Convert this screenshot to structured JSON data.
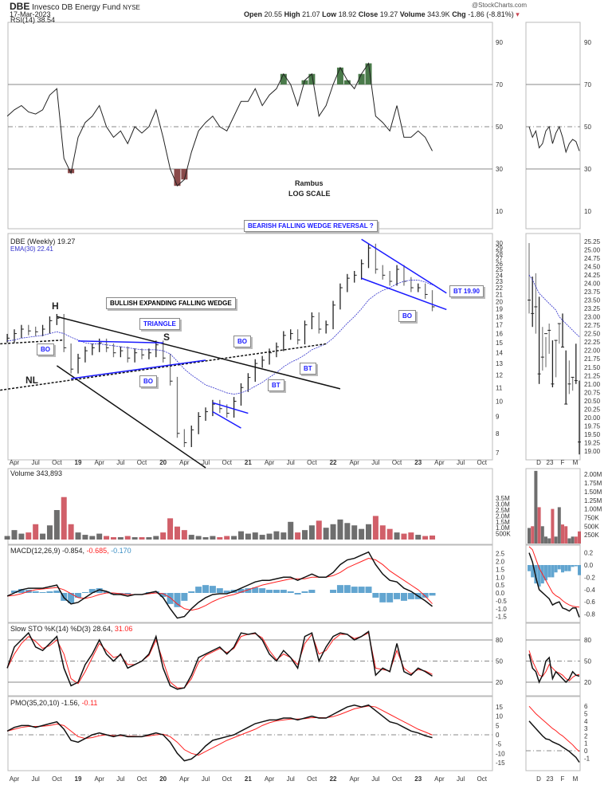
{
  "header": {
    "symbol": "DBE",
    "name": "Invesco DB Energy Fund",
    "exchange": "NYSE",
    "date": "17-Mar-2023",
    "brand": "@StockCharts.com",
    "quote": {
      "open_label": "Open",
      "open": "20.55",
      "high_label": "High",
      "high": "21.07",
      "low_label": "Low",
      "low": "18.92",
      "close_label": "Close",
      "close": "19.27",
      "volume_label": "Volume",
      "volume": "343.9K",
      "chg_label": "Chg",
      "chg": "-1.86 (-8.81%)"
    }
  },
  "legends": {
    "rsi": "RSI(14) 38.54",
    "price": "DBE (Weekly) 19.27",
    "ema": "EMA(30) 22.41",
    "volume": "Volume 343,893",
    "macd": "MACD(12,26,9) -0.854,",
    "macd_signal": "-0.685,",
    "macd_hist": "-0.170",
    "sto": "Slow STO %K(14) %D(3) 28.64,",
    "sto_d": "31.06",
    "pmo": "PMO(35,20,10) -1.56,",
    "pmo_signal": "-0.11"
  },
  "annotations": {
    "rambus": "Rambus",
    "log_scale": "LOG SCALE",
    "bearish_wedge": "BEARISH FALLING WEDGE REVERSAL ?",
    "bullish_wedge": "BULLISH EXPANDING FALLING WEDGE",
    "triangle": "TRIANGLE",
    "bt_price": "BT 19.90",
    "bo": "BO",
    "bt": "BT",
    "h": "H",
    "s": "S",
    "nl": "NL"
  },
  "colors": {
    "up": "#555555",
    "down": "#c9434f",
    "ema": "#3333cc",
    "trend_blue": "#1a1aff",
    "macd_hist": "#3b8fc4",
    "signal": "#ff2020",
    "rsi_over": "#4a7a4a",
    "rsi_under": "#8a4a4a"
  },
  "chart_data": {
    "type": "line",
    "scale": "log",
    "start_month": "2018-03",
    "frequency": "monthly",
    "x_ticks": [
      "Apr",
      "Jul",
      "Oct",
      "19",
      "Apr",
      "Jul",
      "Oct",
      "20",
      "Apr",
      "Jul",
      "Oct",
      "21",
      "Apr",
      "Jul",
      "Oct",
      "22",
      "Apr",
      "Jul",
      "Oct",
      "23",
      "Apr",
      "Jul",
      "Oct"
    ],
    "price_ticks": [
      30,
      29,
      28,
      27,
      26,
      25,
      24,
      23,
      22,
      21,
      20,
      19,
      18,
      17,
      16,
      15,
      14,
      13,
      12,
      11,
      10,
      9,
      8,
      7
    ],
    "rsi_ticks": [
      90,
      70,
      50,
      30,
      10
    ],
    "volume_ticks": [
      "3.5M",
      "3.0M",
      "2.5M",
      "2.0M",
      "1.5M",
      "1.0M",
      "500K"
    ],
    "macd_ticks": [
      2.5,
      2.0,
      1.5,
      1.0,
      0.5,
      0.0,
      -0.5,
      -1.0,
      -1.5
    ],
    "sto_ticks": [
      80,
      50,
      20
    ],
    "pmo_ticks": [
      15,
      10,
      5,
      0,
      -5,
      -10,
      -15
    ],
    "close": [
      15.5,
      16,
      16.5,
      16.3,
      16.2,
      16.5,
      17.5,
      17.8,
      14.5,
      12.5,
      13.5,
      14.2,
      14.5,
      15,
      14.5,
      14,
      14.2,
      13.5,
      14,
      13.8,
      14,
      14.8,
      13.5,
      11.5,
      8,
      7.5,
      8.2,
      9,
      9.3,
      9.8,
      9.5,
      9.2,
      10,
      11,
      11.8,
      13,
      13.3,
      14,
      14.6,
      15.8,
      16,
      15.3,
      17,
      18,
      16.5,
      17,
      19.5,
      22,
      23.5,
      24,
      26,
      29,
      25,
      24,
      23,
      25,
      23,
      22,
      22,
      21,
      19.27
    ],
    "ema30": [
      15.2,
      15.3,
      15.5,
      15.6,
      15.7,
      15.8,
      16,
      16.2,
      16,
      15.6,
      15.3,
      15,
      14.9,
      14.9,
      14.8,
      14.7,
      14.6,
      14.5,
      14.4,
      14.3,
      14.3,
      14.3,
      14.2,
      13.9,
      13.2,
      12.5,
      12,
      11.6,
      11.2,
      11,
      10.8,
      10.6,
      10.5,
      10.6,
      10.8,
      11.1,
      11.4,
      11.8,
      12.2,
      12.7,
      13.1,
      13.4,
      13.8,
      14.3,
      14.6,
      14.9,
      15.5,
      16.3,
      17.2,
      18,
      19,
      20.2,
      21,
      21.6,
      22,
      22.6,
      23,
      23.2,
      23.2,
      22.9,
      22.41
    ],
    "rsi": [
      55,
      58,
      60,
      57,
      56,
      58,
      65,
      68,
      35,
      28,
      45,
      52,
      55,
      60,
      50,
      45,
      48,
      42,
      50,
      47,
      50,
      58,
      45,
      30,
      22,
      25,
      38,
      48,
      52,
      55,
      50,
      48,
      55,
      62,
      62,
      68,
      60,
      65,
      68,
      75,
      70,
      60,
      72,
      75,
      55,
      60,
      70,
      78,
      72,
      68,
      75,
      80,
      55,
      52,
      48,
      60,
      45,
      45,
      48,
      45,
      38.54
    ],
    "volume_m": [
      0.3,
      0.8,
      0.5,
      0.6,
      1.3,
      0.5,
      1.2,
      2.5,
      3.6,
      1.3,
      0.6,
      0.4,
      0.3,
      0.5,
      0.3,
      0.2,
      0.2,
      0.3,
      0.2,
      0.2,
      0.2,
      0.3,
      0.6,
      1.8,
      1.1,
      0.8,
      0.4,
      0.3,
      0.2,
      0.3,
      0.2,
      0.3,
      0.3,
      0.7,
      0.5,
      0.6,
      0.4,
      0.5,
      0.7,
      0.6,
      1.5,
      0.6,
      0.8,
      1.2,
      1.6,
      1.0,
      1.3,
      1.7,
      1.4,
      1.2,
      0.9,
      1.3,
      2.0,
      1.2,
      0.9,
      0.6,
      0.5,
      0.6,
      0.4,
      0.3,
      0.34
    ],
    "macd": [
      -0.2,
      0,
      0.2,
      0.3,
      0.3,
      0.3,
      0.4,
      0.5,
      -0.3,
      -0.7,
      -0.6,
      -0.3,
      0,
      0.2,
      0.1,
      -0.1,
      -0.1,
      -0.2,
      -0.1,
      -0.1,
      0,
      0.1,
      -0.3,
      -1,
      -1.6,
      -1.5,
      -1.0,
      -0.6,
      -0.3,
      -0.1,
      -0.05,
      -0.05,
      0.1,
      0.3,
      0.5,
      0.7,
      0.8,
      0.8,
      0.9,
      1.0,
      1.0,
      0.8,
      1.0,
      1.2,
      1.0,
      1.0,
      1.3,
      1.8,
      2.1,
      2.2,
      2.4,
      2.6,
      1.8,
      1.2,
      0.8,
      0.7,
      0.3,
      0.1,
      -0.2,
      -0.5,
      -0.854
    ],
    "macd_signal": [
      -0.2,
      -0.15,
      -0.05,
      0.1,
      0.2,
      0.25,
      0.3,
      0.35,
      0.2,
      -0.05,
      -0.3,
      -0.35,
      -0.25,
      -0.1,
      0,
      0,
      -0.05,
      -0.1,
      -0.1,
      -0.1,
      -0.05,
      0,
      -0.05,
      -0.3,
      -0.7,
      -1.0,
      -1.1,
      -1.0,
      -0.8,
      -0.55,
      -0.35,
      -0.2,
      -0.1,
      0.05,
      0.2,
      0.35,
      0.5,
      0.6,
      0.7,
      0.8,
      0.9,
      0.9,
      0.9,
      1.0,
      1.0,
      1.0,
      1.1,
      1.3,
      1.6,
      1.8,
      2.0,
      2.2,
      2.1,
      1.8,
      1.4,
      1.1,
      0.8,
      0.5,
      0.2,
      -0.2,
      -0.685
    ],
    "sto_k": [
      40,
      70,
      80,
      90,
      70,
      65,
      75,
      85,
      40,
      15,
      20,
      45,
      60,
      80,
      60,
      50,
      60,
      40,
      45,
      50,
      60,
      85,
      40,
      15,
      10,
      12,
      30,
      55,
      60,
      65,
      70,
      60,
      70,
      90,
      88,
      90,
      80,
      60,
      50,
      65,
      55,
      40,
      85,
      90,
      50,
      70,
      85,
      90,
      88,
      80,
      85,
      92,
      30,
      40,
      35,
      75,
      35,
      30,
      40,
      35,
      28.64
    ],
    "sto_d": [
      40,
      60,
      75,
      85,
      78,
      68,
      72,
      80,
      60,
      25,
      18,
      35,
      55,
      75,
      65,
      55,
      58,
      45,
      45,
      50,
      58,
      80,
      50,
      20,
      12,
      12,
      25,
      48,
      58,
      63,
      68,
      62,
      68,
      85,
      88,
      89,
      83,
      65,
      52,
      60,
      55,
      45,
      75,
      88,
      60,
      65,
      80,
      88,
      88,
      82,
      85,
      90,
      40,
      38,
      36,
      65,
      40,
      32,
      38,
      36,
      31.06
    ],
    "pmo": [
      2,
      4,
      5,
      5,
      4,
      5,
      6,
      7,
      3,
      -3,
      -4,
      -2,
      0,
      1,
      0,
      -1,
      0,
      -1,
      -1,
      -1,
      0,
      1,
      0,
      -4,
      -10,
      -14,
      -13,
      -10,
      -6,
      -3,
      -2,
      -1,
      0,
      2,
      4,
      6,
      7,
      8,
      8,
      9,
      9,
      8,
      9,
      10,
      9,
      9,
      11,
      13,
      15,
      16,
      15,
      16,
      13,
      10,
      7,
      6,
      4,
      2,
      1,
      -0.5,
      -1.56
    ],
    "pmo_signal": [
      2,
      3,
      4,
      4.5,
      4.5,
      4.6,
      5,
      5.8,
      5,
      2,
      -1,
      -2,
      -1.5,
      -0.5,
      0,
      -0.5,
      -0.5,
      -0.7,
      -0.8,
      -0.9,
      -0.6,
      0,
      0.3,
      -1,
      -4,
      -8,
      -10,
      -11,
      -9,
      -7,
      -5,
      -3,
      -1.5,
      0,
      1.5,
      3,
      5,
      6.5,
      7.5,
      8,
      8.5,
      8.5,
      8.7,
      9.2,
      9.3,
      9.2,
      9.8,
      11,
      12.5,
      14,
      14.8,
      15.5,
      15,
      13,
      11,
      9,
      7,
      5,
      3,
      1.5,
      -0.11
    ],
    "trendlines": [
      {
        "from": [
          "2018-10",
          18.0
        ],
        "to": [
          "2022-02",
          10.9
        ],
        "color": "black"
      },
      {
        "from": [
          "2018-10",
          12.8
        ],
        "to": [
          "2020-07",
          6.3
        ],
        "color": "black"
      },
      {
        "from": [
          "2018-02",
          10.8
        ],
        "to": [
          "2021-12",
          14.9
        ],
        "color": "black",
        "dashed": true
      },
      {
        "from": [
          "2018-02",
          14.9
        ],
        "to": [
          "2018-11",
          15.3
        ],
        "color": "black",
        "dashed": true
      },
      {
        "from": [
          "2019-01",
          15.2
        ],
        "to": [
          "2020-01",
          15.0
        ],
        "color": "blue"
      },
      {
        "from": [
          "2018-12",
          11.7
        ],
        "to": [
          "2020-07",
          13.3
        ],
        "color": "blue"
      },
      {
        "from": [
          "2020-08",
          9.9
        ],
        "to": [
          "2021-01",
          9.2
        ],
        "color": "blue"
      },
      {
        "from": [
          "2020-08",
          9.3
        ],
        "to": [
          "2020-12",
          8.3
        ],
        "color": "blue"
      },
      {
        "from": [
          "2022-05",
          30.8
        ],
        "to": [
          "2023-05",
          21.2
        ],
        "color": "blue"
      },
      {
        "from": [
          "2022-05",
          23.5
        ],
        "to": [
          "2023-05",
          18.9
        ],
        "color": "blue"
      }
    ],
    "inset": {
      "x_ticks": [
        "D",
        "23",
        "F",
        "M"
      ],
      "frequency": "weekly",
      "price_ticks": [
        25.25,
        25.0,
        24.75,
        24.5,
        24.25,
        24.0,
        23.75,
        23.5,
        23.25,
        23.0,
        22.75,
        22.5,
        22.25,
        22.0,
        21.75,
        21.5,
        21.25,
        21.0,
        20.75,
        20.5,
        20.25,
        20.0,
        19.75,
        19.5,
        19.25,
        19.0
      ],
      "volume_ticks": [
        "2.00M",
        "1.75M",
        "1.50M",
        "1.25M",
        "1.00M",
        "750K",
        "500K",
        "250K"
      ],
      "macd_ticks": [
        0.2,
        0.0,
        -0.2,
        -0.4,
        -0.6,
        -0.8
      ],
      "pmo_ticks": [
        6,
        5,
        4,
        3,
        2,
        1,
        0,
        -1
      ],
      "close": [
        23.5,
        23.1,
        23.3,
        21.3,
        21.8,
        22.5,
        22.6,
        21.0,
        22.3,
        22.8,
        22.1,
        20.4,
        21.0,
        21.2,
        21.1,
        19.27
      ],
      "high": [
        25.2,
        24.2,
        24.3,
        23.6,
        22.7,
        22.4,
        22.8,
        22.3,
        22.3,
        22.8,
        23.1,
        22.0,
        21.7,
        21.2,
        22.2,
        21.1
      ],
      "low": [
        23.1,
        22.7,
        22.5,
        21.0,
        21.4,
        21.5,
        21.9,
        20.9,
        21.2,
        22.2,
        22.1,
        20.4,
        20.7,
        20.8,
        21.0,
        18.9
      ],
      "ema30": [
        24.25,
        24.1,
        23.9,
        23.7,
        23.6,
        23.5,
        23.4,
        23.3,
        23.2,
        23.0,
        22.9,
        22.8,
        22.7,
        22.6,
        22.5,
        22.41
      ],
      "rsi": [
        50,
        45,
        48,
        40,
        42,
        48,
        50,
        42,
        47,
        50,
        45,
        38,
        42,
        44,
        43,
        38.54
      ],
      "volume_m": [
        0.45,
        0.5,
        2.1,
        1.05,
        0.5,
        0.2,
        0.15,
        1.0,
        0.2,
        1.05,
        0.55,
        0.5,
        0.15,
        0.2,
        0.2,
        0.35
      ],
      "macd": [
        0.2,
        0.05,
        -0.2,
        -0.4,
        -0.45,
        -0.5,
        -0.55,
        -0.65,
        -0.62,
        -0.6,
        -0.7,
        -0.72,
        -0.75,
        -0.7,
        -0.7,
        -0.85
      ],
      "macd_signal": [
        0.3,
        0.25,
        0.1,
        -0.05,
        -0.15,
        -0.25,
        -0.35,
        -0.45,
        -0.5,
        -0.53,
        -0.58,
        -0.62,
        -0.65,
        -0.67,
        -0.68,
        -0.685
      ],
      "sto_k": [
        60,
        40,
        35,
        20,
        30,
        50,
        55,
        25,
        35,
        30,
        25,
        20,
        25,
        35,
        30,
        28.64
      ],
      "sto_d": [
        65,
        50,
        40,
        30,
        28,
        35,
        45,
        40,
        35,
        33,
        30,
        25,
        22,
        27,
        30,
        31.06
      ],
      "pmo": [
        4,
        3.5,
        3,
        2.5,
        2,
        1.6,
        1.5,
        1.2,
        1,
        0.8,
        0.5,
        0.2,
        -0.1,
        -0.5,
        -0.9,
        -1.56
      ],
      "pmo_signal": [
        6,
        5.5,
        5,
        4.6,
        4.2,
        3.8,
        3.4,
        3,
        2.7,
        2.3,
        2,
        1.6,
        1.2,
        0.8,
        0.3,
        -0.11
      ]
    }
  }
}
